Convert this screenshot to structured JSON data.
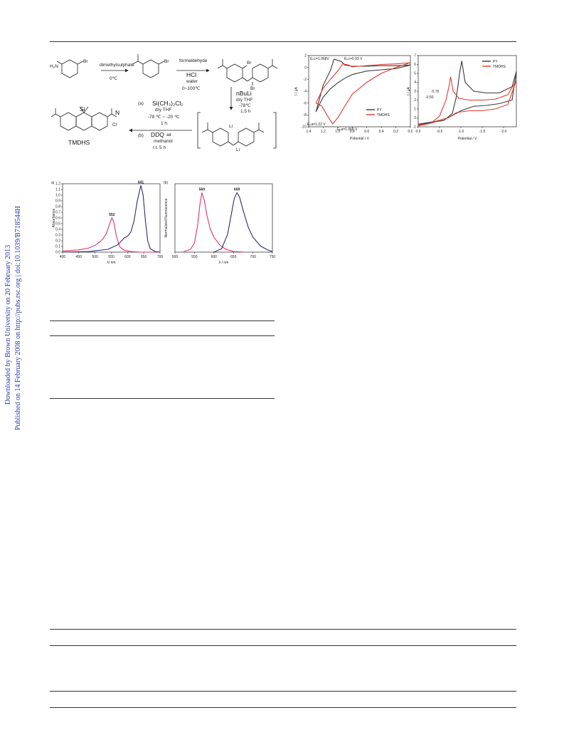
{
  "sidebar": {
    "downloaded": "Downloaded by Brown University on 20 February 2013",
    "published": "Published on 14 February 2008 on http://pubs.rsc.org | doi:10.1039/B718544H"
  },
  "scheme": {
    "r1_text": "H₂N",
    "br": "Br",
    "step1_reagent": "dimethylsulphate",
    "step1_temp": "0℃",
    "step2_reagent": "formaldehyde",
    "step2_acid": "HCl",
    "step2_solvent": "water",
    "step2_temp": "0~100℃",
    "step3_reagent": "nBuLi",
    "step3_solvent": "dry THF",
    "step3_temp": "-78℃",
    "step3_time": "1.5 h",
    "li": "Li",
    "step4_a_label": "(a)",
    "step4_a_reagent": "Si(CH₃)₂Cl₂",
    "step4_a_solvent": "dry THF",
    "step4_a_temp": "-78 ℃ ~ -20 ℃",
    "step4_a_time": "1 h",
    "step4_b_label": "(b)",
    "step4_b_reagent": "DDQ",
    "step4_b_air": "air",
    "step4_b_solvent": "methanol",
    "step4_b_time": "r.t.  5 h",
    "product_name": "TMDHS",
    "si": "Si",
    "n": "N",
    "cl": "Cl"
  },
  "chart_data": [
    {
      "panel": "a",
      "type": "line",
      "xlabel": "λ/ nm",
      "ylabel": "Absorbance",
      "xlim": [
        400,
        700
      ],
      "ylim": [
        0,
        1.2
      ],
      "xticks": [
        "400",
        "450",
        "500",
        "550",
        "600",
        "650",
        "700"
      ],
      "yticks": [
        "0.0",
        "0.1",
        "0.2",
        "0.3",
        "0.4",
        "0.5",
        "0.6",
        "0.7",
        "0.8",
        "0.9",
        "1.0",
        "1.1",
        "1.2"
      ],
      "peak_labels": [
        "552",
        "641"
      ],
      "series": [
        {
          "color": "#e0336f",
          "x": [
            400,
            450,
            480,
            500,
            515,
            525,
            535,
            545,
            552,
            558,
            565,
            575,
            590,
            610,
            640,
            700
          ],
          "y": [
            0.02,
            0.04,
            0.07,
            0.12,
            0.18,
            0.24,
            0.33,
            0.5,
            0.6,
            0.52,
            0.3,
            0.1,
            0.03,
            0.01,
            0.0,
            0.0
          ]
        },
        {
          "color": "#2d2a7a",
          "x": [
            400,
            480,
            540,
            570,
            590,
            600,
            610,
            620,
            630,
            641,
            648,
            655,
            662,
            670,
            685,
            700
          ],
          "y": [
            0.0,
            0.01,
            0.05,
            0.13,
            0.25,
            0.28,
            0.35,
            0.55,
            0.9,
            1.17,
            1.0,
            0.55,
            0.2,
            0.06,
            0.01,
            0.0
          ]
        }
      ]
    },
    {
      "panel": "b",
      "type": "line",
      "xlabel": "λ  / nm",
      "ylabel": "Normalized fluorescence",
      "xlim": [
        500,
        750
      ],
      "ylim": [
        0,
        1.15
      ],
      "xticks": [
        "500",
        "550",
        "600",
        "650",
        "700",
        "750"
      ],
      "peak_labels": [
        "569",
        "659"
      ],
      "series": [
        {
          "color": "#e0336f",
          "x": [
            520,
            540,
            550,
            558,
            564,
            569,
            575,
            582,
            590,
            600,
            615,
            630,
            650,
            680
          ],
          "y": [
            0.0,
            0.05,
            0.15,
            0.45,
            0.8,
            1.0,
            0.88,
            0.62,
            0.4,
            0.25,
            0.12,
            0.05,
            0.01,
            0.0
          ]
        },
        {
          "color": "#2d2a7a",
          "x": [
            600,
            620,
            635,
            645,
            652,
            659,
            666,
            675,
            688,
            700,
            720,
            740,
            750
          ],
          "y": [
            0.0,
            0.06,
            0.3,
            0.65,
            0.9,
            1.0,
            0.92,
            0.7,
            0.42,
            0.25,
            0.1,
            0.03,
            0.01
          ]
        }
      ]
    },
    {
      "panel": "cv-oxidation",
      "type": "line",
      "xlabel": "Potential  / V",
      "ylabel": "I / μA",
      "xlim": [
        1.4,
        0.0
      ],
      "ylim": [
        -10,
        2
      ],
      "xticks": [
        "1.4",
        "1.2",
        "1.0",
        "0.8",
        "0.6",
        "0.4",
        "0.2",
        "0.0"
      ],
      "yticks": [
        "-10",
        "-8",
        "-6",
        "-4",
        "-2",
        "0",
        "2"
      ],
      "legend": [
        "PY",
        "TMDHS"
      ],
      "legend_position": "lower-right",
      "annotations": [
        "Eₚc=1.068V",
        "Eₚc=0.93 V",
        "Eₚa=1.22 V",
        "Eₚa=1.068 V"
      ],
      "series": [
        {
          "name": "PY",
          "color": "#3a3a3a",
          "x": [
            1.3,
            1.2,
            1.1,
            1.05,
            0.95,
            0.9,
            0.8,
            0.6,
            0.4,
            0.2,
            0.0,
            0.2,
            0.4,
            0.6,
            0.8,
            0.9,
            1.0,
            1.1,
            1.2,
            1.25,
            1.3
          ],
          "y": [
            -7.5,
            -3.0,
            -0.5,
            1.4,
            1.0,
            0.4,
            0.2,
            0.2,
            0.3,
            0.3,
            0.4,
            -0.2,
            -0.4,
            -0.6,
            -1.2,
            -1.8,
            -2.6,
            -3.6,
            -5.0,
            -6.2,
            -7.5
          ]
        },
        {
          "name": "TMDHS",
          "color": "#e23a2f",
          "x": [
            1.3,
            1.2,
            1.1,
            1.0,
            0.93,
            0.85,
            0.8,
            0.6,
            0.4,
            0.2,
            0.0,
            0.2,
            0.4,
            0.6,
            0.8,
            0.9,
            1.0,
            1.07,
            1.15,
            1.22,
            1.3
          ],
          "y": [
            -6.0,
            -3.5,
            -2.0,
            -0.6,
            0.6,
            0.4,
            0.1,
            0.3,
            0.5,
            0.6,
            0.8,
            0.0,
            -1.0,
            -2.5,
            -4.5,
            -6.5,
            -8.5,
            -9.5,
            -8.0,
            -6.5,
            -6.0
          ]
        }
      ]
    },
    {
      "panel": "cv-reduction",
      "type": "line",
      "xlabel": "Potential / V",
      "ylabel": "I / μA",
      "xlim": [
        0.0,
        -2.3
      ],
      "ylim": [
        -1,
        7
      ],
      "xticks": [
        "0.0",
        "-0.5",
        "-1.0",
        "-1.5",
        "-2.0"
      ],
      "yticks": [
        "-1",
        "0",
        "1",
        "2",
        "3",
        "4",
        "5",
        "6",
        "7"
      ],
      "legend": [
        "PY",
        "TMDHS"
      ],
      "legend_position": "top-right",
      "annotations": [
        "-0.76",
        "-0.50"
      ],
      "series": [
        {
          "name": "PY",
          "color": "#3a3a3a",
          "x": [
            0.0,
            -0.3,
            -0.6,
            -0.8,
            -0.9,
            -0.97,
            -1.02,
            -1.1,
            -1.3,
            -1.6,
            -1.9,
            -2.2,
            -2.3,
            -2.2,
            -1.9,
            -1.6,
            -1.3,
            -1.0,
            -0.7,
            -0.4,
            0.0
          ],
          "y": [
            -0.8,
            -0.5,
            -0.3,
            0.5,
            2.5,
            5.0,
            6.4,
            4.0,
            3.0,
            2.8,
            2.8,
            3.5,
            5.2,
            2.0,
            1.6,
            1.4,
            1.3,
            0.8,
            0.0,
            -0.4,
            -0.7
          ]
        },
        {
          "name": "TMDHS",
          "color": "#e23a2f",
          "x": [
            0.0,
            -0.3,
            -0.5,
            -0.65,
            -0.72,
            -0.76,
            -0.82,
            -0.95,
            -1.2,
            -1.5,
            -1.8,
            -2.1,
            -2.3,
            -2.1,
            -1.8,
            -1.5,
            -1.2,
            -0.9,
            -0.7,
            -0.5,
            -0.3,
            0.0
          ],
          "y": [
            -0.9,
            -0.6,
            0.2,
            2.0,
            3.5,
            4.6,
            3.0,
            2.2,
            2.0,
            2.0,
            2.1,
            2.6,
            4.2,
            1.5,
            1.0,
            0.8,
            0.8,
            0.6,
            0.0,
            -0.3,
            -0.6,
            -0.8
          ]
        }
      ]
    }
  ]
}
